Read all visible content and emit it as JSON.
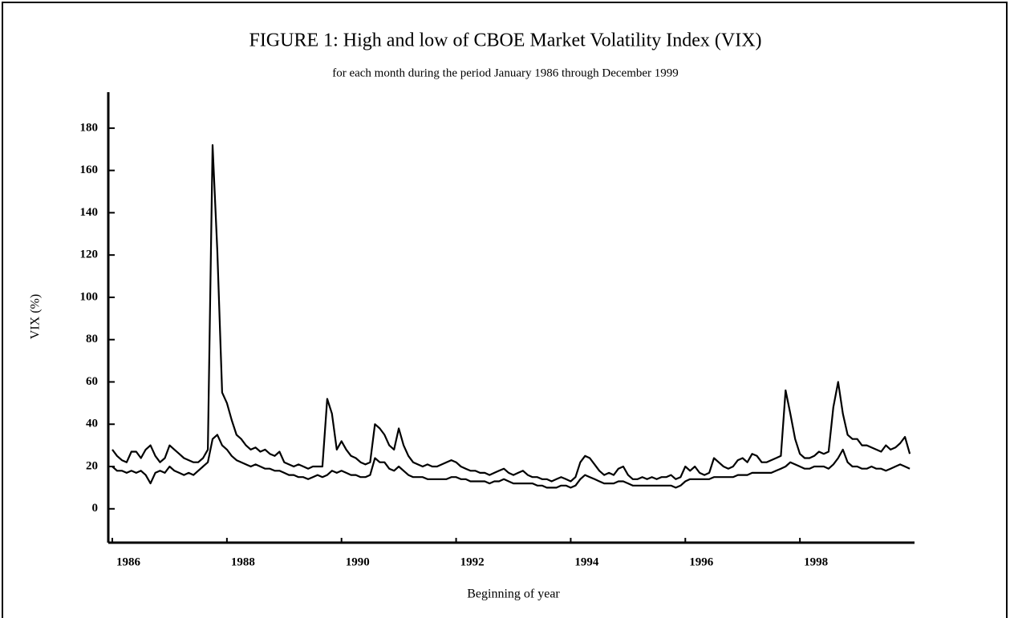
{
  "chart_data": {
    "type": "line",
    "title": "FIGURE 1: High and low of CBOE Market Volatility Index (VIX)",
    "subtitle": "for each month during the period January 1986 through December 1999",
    "x_label": "Beginning of year",
    "y_label": "VIX (%)",
    "xlim": [
      1985.93,
      2000.0
    ],
    "xticks": [
      1986,
      1988,
      1990,
      1992,
      1994,
      1996,
      1998
    ],
    "ylim": [
      -16,
      197
    ],
    "yticks": [
      0,
      20,
      40,
      60,
      80,
      100,
      120,
      140,
      160,
      180
    ],
    "grid": false,
    "x": [
      1986,
      1986.083,
      1986.167,
      1986.25,
      1986.333,
      1986.417,
      1986.5,
      1986.583,
      1986.667,
      1986.75,
      1986.833,
      1986.917,
      1987,
      1987.083,
      1987.167,
      1987.25,
      1987.333,
      1987.417,
      1987.5,
      1987.583,
      1987.667,
      1987.75,
      1987.833,
      1987.917,
      1988,
      1988.083,
      1988.167,
      1988.25,
      1988.333,
      1988.417,
      1988.5,
      1988.583,
      1988.667,
      1988.75,
      1988.833,
      1988.917,
      1989,
      1989.083,
      1989.167,
      1989.25,
      1989.333,
      1989.417,
      1989.5,
      1989.583,
      1989.667,
      1989.75,
      1989.833,
      1989.917,
      1990,
      1990.083,
      1990.167,
      1990.25,
      1990.333,
      1990.417,
      1990.5,
      1990.583,
      1990.667,
      1990.75,
      1990.833,
      1990.917,
      1991,
      1991.083,
      1991.167,
      1991.25,
      1991.333,
      1991.417,
      1991.5,
      1991.583,
      1991.667,
      1991.75,
      1991.833,
      1991.917,
      1992,
      1992.083,
      1992.167,
      1992.25,
      1992.333,
      1992.417,
      1992.5,
      1992.583,
      1992.667,
      1992.75,
      1992.833,
      1992.917,
      1993,
      1993.083,
      1993.167,
      1993.25,
      1993.333,
      1993.417,
      1993.5,
      1993.583,
      1993.667,
      1993.75,
      1993.833,
      1993.917,
      1994,
      1994.083,
      1994.167,
      1994.25,
      1994.333,
      1994.417,
      1994.5,
      1994.583,
      1994.667,
      1994.75,
      1994.833,
      1994.917,
      1995,
      1995.083,
      1995.167,
      1995.25,
      1995.333,
      1995.417,
      1995.5,
      1995.583,
      1995.667,
      1995.75,
      1995.833,
      1995.917,
      1996,
      1996.083,
      1996.167,
      1996.25,
      1996.333,
      1996.417,
      1996.5,
      1996.583,
      1996.667,
      1996.75,
      1996.833,
      1996.917,
      1997,
      1997.083,
      1997.167,
      1997.25,
      1997.333,
      1997.417,
      1997.5,
      1997.583,
      1997.667,
      1997.75,
      1997.833,
      1997.917,
      1998,
      1998.083,
      1998.167,
      1998.25,
      1998.333,
      1998.417,
      1998.5,
      1998.583,
      1998.667,
      1998.75,
      1998.833,
      1998.917,
      1999,
      1999.083,
      1999.167,
      1999.25,
      1999.333,
      1999.417,
      1999.5,
      1999.583,
      1999.667,
      1999.75,
      1999.833,
      1999.917
    ],
    "series": [
      {
        "color": "#000000",
        "values": [
          28,
          25,
          23,
          22,
          27,
          27,
          24,
          28,
          30,
          25,
          22,
          24,
          30,
          28,
          26,
          24,
          23,
          22,
          22,
          24,
          28,
          172,
          122,
          55,
          50,
          42,
          35,
          33,
          30,
          28,
          29,
          27,
          28,
          26,
          25,
          27,
          22,
          21,
          20,
          21,
          20,
          19,
          20,
          20,
          20,
          52,
          45,
          28,
          32,
          28,
          25,
          24,
          22,
          21,
          22,
          40,
          38,
          35,
          30,
          28,
          38,
          30,
          25,
          22,
          21,
          20,
          21,
          20,
          20,
          21,
          22,
          23,
          22,
          20,
          19,
          18,
          18,
          17,
          17,
          16,
          17,
          18,
          19,
          17,
          16,
          17,
          18,
          16,
          15,
          15,
          14,
          14,
          13,
          14,
          15,
          14,
          13,
          15,
          22,
          25,
          24,
          21,
          18,
          16,
          17,
          16,
          19,
          20,
          16,
          14,
          14,
          15,
          14,
          15,
          14,
          15,
          15,
          16,
          14,
          15,
          20,
          18,
          20,
          17,
          16,
          17,
          24,
          22,
          20,
          19,
          20,
          23,
          24,
          22,
          26,
          25,
          22,
          22,
          23,
          24,
          25,
          56,
          45,
          33,
          26,
          24,
          24,
          25,
          27,
          26,
          27,
          48,
          60,
          45,
          35,
          33,
          33,
          30,
          30,
          29,
          28,
          27,
          30,
          28,
          29,
          31,
          34,
          26
        ]
      },
      {
        "color": "#000000",
        "values": [
          20,
          18,
          18,
          17,
          18,
          17,
          18,
          16,
          12,
          17,
          18,
          17,
          20,
          18,
          17,
          16,
          17,
          16,
          18,
          20,
          22,
          33,
          35,
          30,
          28,
          25,
          23,
          22,
          21,
          20,
          21,
          20,
          19,
          19,
          18,
          18,
          17,
          16,
          16,
          15,
          15,
          14,
          15,
          16,
          15,
          16,
          18,
          17,
          18,
          17,
          16,
          16,
          15,
          15,
          16,
          24,
          22,
          22,
          19,
          18,
          20,
          18,
          16,
          15,
          15,
          15,
          14,
          14,
          14,
          14,
          14,
          15,
          15,
          14,
          14,
          13,
          13,
          13,
          13,
          12,
          13,
          13,
          14,
          13,
          12,
          12,
          12,
          12,
          12,
          11,
          11,
          10,
          10,
          10,
          11,
          11,
          10,
          11,
          14,
          16,
          15,
          14,
          13,
          12,
          12,
          12,
          13,
          13,
          12,
          11,
          11,
          11,
          11,
          11,
          11,
          11,
          11,
          11,
          10,
          11,
          13,
          14,
          14,
          14,
          14,
          14,
          15,
          15,
          15,
          15,
          15,
          16,
          16,
          16,
          17,
          17,
          17,
          17,
          17,
          18,
          19,
          20,
          22,
          21,
          20,
          19,
          19,
          20,
          20,
          20,
          19,
          21,
          24,
          28,
          22,
          20,
          20,
          19,
          19,
          20,
          19,
          19,
          18,
          19,
          20,
          21,
          20,
          19
        ]
      }
    ]
  }
}
